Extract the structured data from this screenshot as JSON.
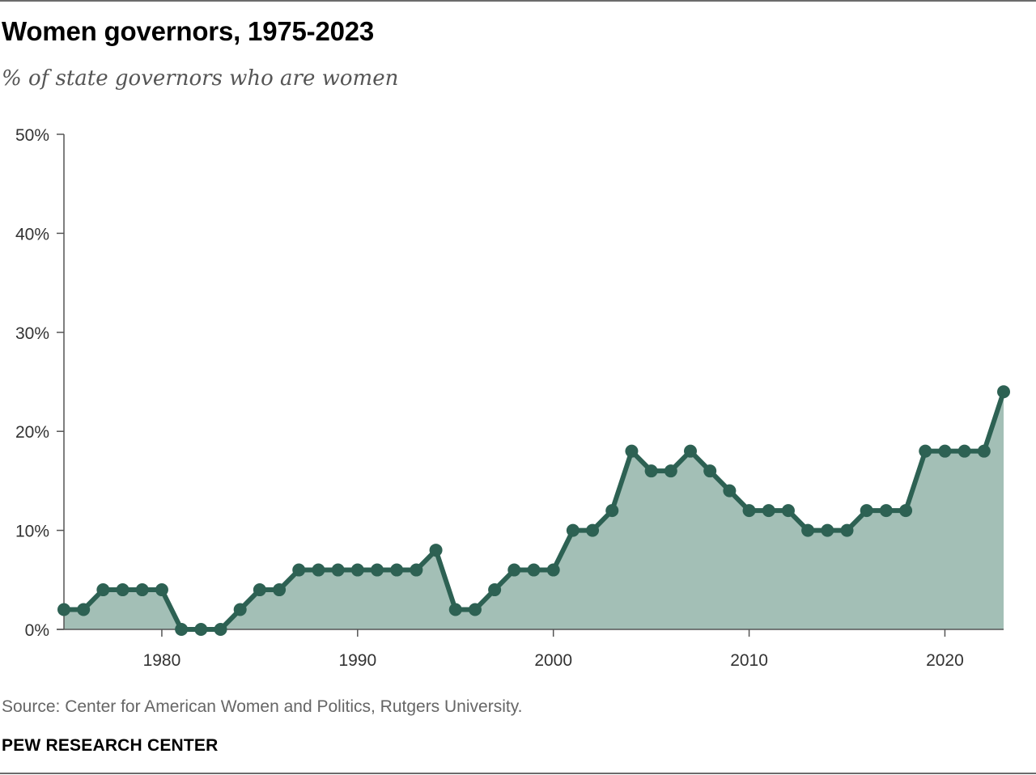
{
  "header": {
    "title": "Women governors, 1975-2023",
    "subtitle": "% of state governors who are women"
  },
  "footer": {
    "source": "Source: Center for American Women and Politics, Rutgers University.",
    "brand": "PEW RESEARCH CENTER"
  },
  "colors": {
    "line": "#2d6153",
    "fill": "#a3bfb6",
    "axis": "#555555"
  },
  "chart_data": {
    "type": "area",
    "title": "Women governors, 1975-2023",
    "subtitle": "% of state governors who are women",
    "xlabel": "",
    "ylabel": "",
    "x": [
      1975,
      1976,
      1977,
      1978,
      1979,
      1980,
      1981,
      1982,
      1983,
      1984,
      1985,
      1986,
      1987,
      1988,
      1989,
      1990,
      1991,
      1992,
      1993,
      1994,
      1995,
      1996,
      1997,
      1998,
      1999,
      2000,
      2001,
      2002,
      2003,
      2004,
      2005,
      2006,
      2007,
      2008,
      2009,
      2010,
      2011,
      2012,
      2013,
      2014,
      2015,
      2016,
      2017,
      2018,
      2019,
      2020,
      2021,
      2022,
      2023
    ],
    "series": [
      {
        "values": [
          2,
          2,
          4,
          4,
          4,
          4,
          0,
          0,
          0,
          2,
          4,
          4,
          6,
          6,
          6,
          6,
          6,
          6,
          6,
          8,
          2,
          2,
          4,
          6,
          6,
          6,
          10,
          10,
          12,
          18,
          16,
          16,
          18,
          16,
          14,
          12,
          12,
          12,
          10,
          10,
          10,
          12,
          12,
          12,
          18,
          18,
          18,
          18,
          24
        ]
      }
    ],
    "xlim": [
      1975,
      2023
    ],
    "ylim": [
      0,
      50
    ],
    "x_ticks": [
      1980,
      1990,
      2000,
      2010,
      2020
    ],
    "x_tick_labels": [
      "1980",
      "1990",
      "2000",
      "2010",
      "2020"
    ],
    "y_ticks": [
      0,
      10,
      20,
      30,
      40,
      50
    ],
    "y_tick_labels": [
      "0%",
      "10%",
      "20%",
      "30%",
      "40%",
      "50%"
    ],
    "grid": false,
    "legend": "none"
  }
}
